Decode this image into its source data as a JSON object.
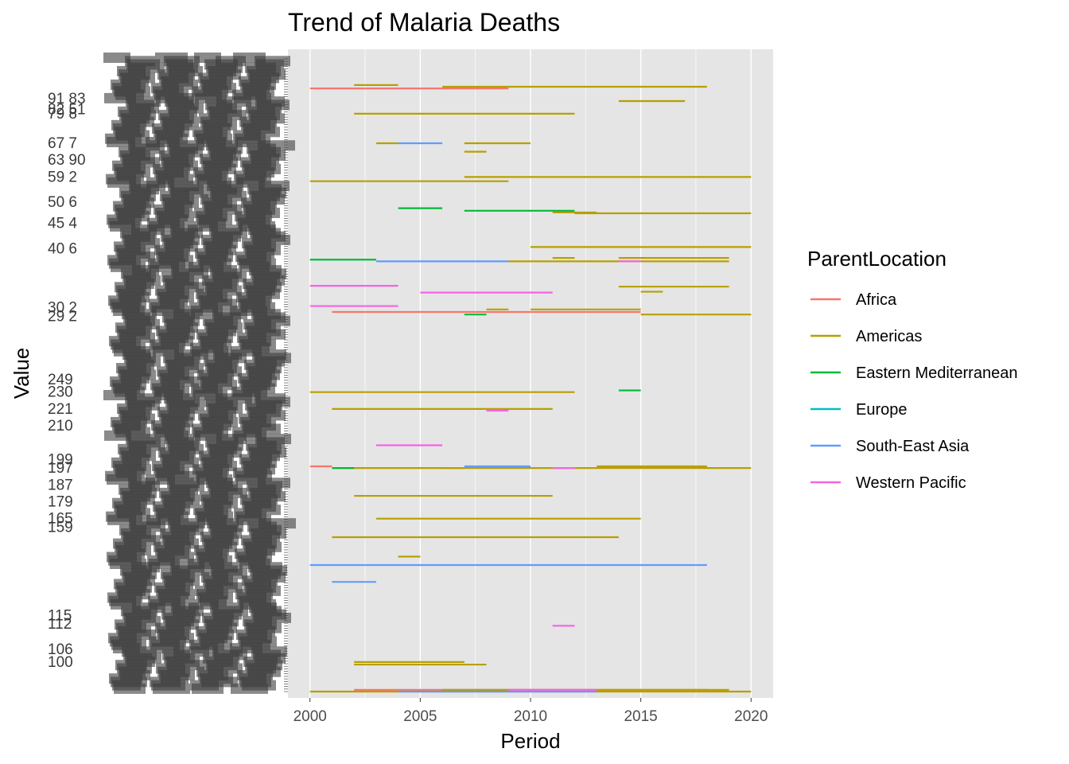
{
  "chart_data": {
    "type": "line",
    "title": "Trend of Malaria Deaths",
    "xlabel": "Period",
    "ylabel": "Value",
    "xlim": [
      1999,
      2021
    ],
    "x_ticks": [
      2000,
      2005,
      2010,
      2015,
      2020
    ],
    "y_axis_note": "discrete axis with hundreds of overlapping, mostly unreadable tick labels",
    "y_ticks_readable": [
      {
        "label": "91 83",
        "rank": 47
      },
      {
        "label": "82 51",
        "rank": 60
      },
      {
        "label": "79 8",
        "rank": 65
      },
      {
        "label": "67 7",
        "rank": 100
      },
      {
        "label": "63 90",
        "rank": 120
      },
      {
        "label": "59 2",
        "rank": 140
      },
      {
        "label": "50 6",
        "rank": 170
      },
      {
        "label": "45 4",
        "rank": 195
      },
      {
        "label": "40 6",
        "rank": 225
      },
      {
        "label": "30 2",
        "rank": 295
      },
      {
        "label": "29 2",
        "rank": 305
      },
      {
        "label": "249",
        "rank": 380
      },
      {
        "label": "230",
        "rank": 395
      },
      {
        "label": "221",
        "rank": 415
      },
      {
        "label": "210",
        "rank": 435
      },
      {
        "label": "199",
        "rank": 475
      },
      {
        "label": "197",
        "rank": 485
      },
      {
        "label": "187",
        "rank": 505
      },
      {
        "label": "179",
        "rank": 525
      },
      {
        "label": "165",
        "rank": 545
      },
      {
        "label": "159",
        "rank": 555
      },
      {
        "label": "115",
        "rank": 660
      },
      {
        "label": "112",
        "rank": 670
      },
      {
        "label": "106",
        "rank": 700
      },
      {
        "label": "100",
        "rank": 715
      }
    ],
    "legend": {
      "title": "ParentLocation",
      "placement": "right",
      "entries": [
        {
          "name": "Africa",
          "color": "#F8766D"
        },
        {
          "name": "Americas",
          "color": "#B79F00"
        },
        {
          "name": "Eastern Mediterranean",
          "color": "#00BA38"
        },
        {
          "name": "Europe",
          "color": "#00BFC4"
        },
        {
          "name": "South-East Asia",
          "color": "#619CFF"
        },
        {
          "name": "Western Pacific",
          "color": "#F564E3"
        }
      ]
    },
    "y_rank_max": 750,
    "grid": true,
    "series": [
      {
        "name": "Africa",
        "segments": [
          [
            2000,
            2009,
            35
          ],
          [
            2001,
            2015,
            300
          ],
          [
            2000,
            2001,
            483
          ],
          [
            2006,
            2007,
            485
          ],
          [
            2002,
            2018,
            748
          ]
        ]
      },
      {
        "name": "Americas",
        "segments": [
          [
            2002,
            2004,
            31
          ],
          [
            2006,
            2018,
            33
          ],
          [
            2014,
            2017,
            50
          ],
          [
            2002,
            2012,
            65
          ],
          [
            2003,
            2004,
            100
          ],
          [
            2007,
            2010,
            100
          ],
          [
            2007,
            2008,
            110
          ],
          [
            2007,
            2020,
            140
          ],
          [
            2000,
            2009,
            145
          ],
          [
            2011,
            2013,
            182
          ],
          [
            2012,
            2020,
            183
          ],
          [
            2010,
            2020,
            223
          ],
          [
            2011,
            2012,
            236
          ],
          [
            2014,
            2019,
            236
          ],
          [
            2009,
            2019,
            240
          ],
          [
            2014,
            2019,
            270
          ],
          [
            2015,
            2016,
            276
          ],
          [
            2008,
            2009,
            297
          ],
          [
            2010,
            2015,
            297
          ],
          [
            2015,
            2020,
            303
          ],
          [
            2000,
            2012,
            395
          ],
          [
            2001,
            2011,
            415
          ],
          [
            2001,
            2020,
            485
          ],
          [
            2013,
            2018,
            483
          ],
          [
            2002,
            2011,
            518
          ],
          [
            2003,
            2015,
            545
          ],
          [
            2001,
            2014,
            567
          ],
          [
            2004,
            2005,
            590
          ],
          [
            2002,
            2007,
            715
          ],
          [
            2002,
            2008,
            718
          ],
          [
            2000,
            2020,
            750
          ],
          [
            2006,
            2019,
            748
          ]
        ]
      },
      {
        "name": "Eastern Mediterranean",
        "segments": [
          [
            2004,
            2006,
            177
          ],
          [
            2007,
            2012,
            180
          ],
          [
            2000,
            2003,
            238
          ],
          [
            2007,
            2008,
            303
          ],
          [
            2014,
            2015,
            393
          ],
          [
            2001,
            2002,
            485
          ]
        ]
      },
      {
        "name": "Europe",
        "segments": []
      },
      {
        "name": "South-East Asia",
        "segments": [
          [
            2004,
            2006,
            100
          ],
          [
            2003,
            2009,
            240
          ],
          [
            2007,
            2010,
            483
          ],
          [
            2000,
            2018,
            600
          ],
          [
            2001,
            2003,
            620
          ],
          [
            2004,
            2013,
            750
          ]
        ]
      },
      {
        "name": "Western Pacific",
        "segments": [
          [
            2014,
            2015,
            240
          ],
          [
            2000,
            2004,
            269
          ],
          [
            2005,
            2011,
            277
          ],
          [
            2000,
            2004,
            293
          ],
          [
            2008,
            2009,
            417
          ],
          [
            2003,
            2006,
            458
          ],
          [
            2011,
            2012,
            485
          ],
          [
            2011,
            2012,
            672
          ],
          [
            2009,
            2013,
            748
          ]
        ]
      }
    ]
  }
}
